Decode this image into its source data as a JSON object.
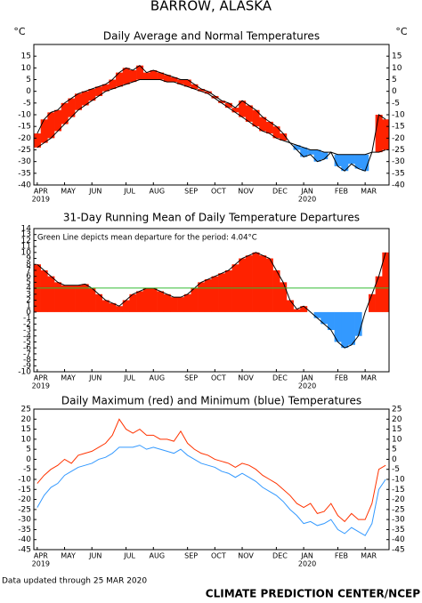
{
  "title": "BARROW, ALASKA",
  "footer_left": "Data updated through 25 MAR 2020",
  "footer_right": "CLIMATE PREDICTION CENTER/NCEP",
  "chart_data": [
    {
      "type": "band",
      "title": "Daily Average and Normal Temperatures",
      "unit_label": "°C",
      "categories": [
        "APR",
        null,
        null,
        null,
        "MAY",
        null,
        null,
        null,
        "JUN",
        null,
        null,
        null,
        null,
        "JUL",
        null,
        null,
        null,
        "AUG",
        null,
        null,
        null,
        null,
        "SEP",
        null,
        null,
        null,
        "OCT",
        null,
        null,
        null,
        "NOV",
        null,
        null,
        null,
        null,
        "DEC",
        null,
        null,
        null,
        "JAN",
        null,
        null,
        null,
        null,
        "FEB",
        null,
        null,
        null,
        "MAR",
        null,
        null,
        null
      ],
      "year_labels": [
        "2019",
        null,
        null,
        null,
        null,
        null,
        null,
        null,
        null,
        null,
        null,
        null,
        null,
        null,
        null,
        null,
        null,
        null,
        null,
        null,
        null,
        null,
        null,
        null,
        null,
        null,
        null,
        null,
        null,
        null,
        null,
        null,
        null,
        null,
        null,
        null,
        null,
        null,
        null,
        "2020",
        null,
        null,
        null,
        null,
        null,
        null,
        null,
        null,
        null,
        null,
        null,
        null
      ],
      "above_color": "#ff2200",
      "below_color": "#3399ff",
      "series": [
        {
          "color": "#000000",
          "values": [
            -18,
            -12,
            -9,
            -8,
            -5,
            -3,
            -1,
            0,
            1,
            2,
            3,
            5,
            8,
            10,
            9,
            11,
            8,
            9,
            8,
            7,
            6,
            5,
            5,
            3,
            1,
            0,
            -2,
            -4,
            -5,
            -7,
            -4,
            -6,
            -8,
            -11,
            -13,
            -15,
            -18,
            -22,
            -25,
            -28,
            -27,
            -30,
            -29,
            -26,
            -32,
            -34,
            -31,
            -33,
            -34,
            -26,
            -10,
            -12
          ]
        },
        {
          "color": "#000000",
          "values": [
            -24,
            -22,
            -20,
            -17,
            -14,
            -11,
            -8,
            -6,
            -4,
            -2,
            0,
            1,
            2,
            3,
            4,
            5,
            5,
            5,
            5,
            4,
            4,
            3,
            2,
            1,
            0,
            -1,
            -3,
            -5,
            -7,
            -9,
            -11,
            -13,
            -15,
            -17,
            -18,
            -20,
            -21,
            -22,
            -23,
            -24,
            -25,
            -25,
            -26,
            -26,
            -27,
            -27,
            -27,
            -27,
            -27,
            -26,
            -26,
            -25
          ]
        }
      ],
      "ylim": [
        -40,
        20
      ],
      "yticks": [
        -40,
        -35,
        -30,
        -25,
        -20,
        -15,
        -10,
        -5,
        0,
        5,
        10,
        15
      ],
      "yaxis_sides": [
        "left",
        "right"
      ]
    },
    {
      "type": "area",
      "title": "31-Day Running Mean of Daily Temperature Departures",
      "annotation": "Green Line depicts mean departure for the period: 4.04°C",
      "mean": 4.04,
      "mean_color": "#33bb33",
      "categories": [
        "APR",
        null,
        null,
        null,
        "MAY",
        null,
        null,
        null,
        "JUN",
        null,
        null,
        null,
        null,
        "JUL",
        null,
        null,
        null,
        "AUG",
        null,
        null,
        null,
        null,
        "SEP",
        null,
        null,
        null,
        "OCT",
        null,
        null,
        null,
        "NOV",
        null,
        null,
        null,
        null,
        "DEC",
        null,
        null,
        null,
        "JAN",
        null,
        null,
        null,
        null,
        "FEB",
        null,
        null,
        null,
        "MAR",
        null,
        null,
        null
      ],
      "year_labels": [
        "2019",
        null,
        null,
        null,
        null,
        null,
        null,
        null,
        null,
        null,
        null,
        null,
        null,
        null,
        null,
        null,
        null,
        null,
        null,
        null,
        null,
        null,
        null,
        null,
        null,
        null,
        null,
        null,
        null,
        null,
        null,
        null,
        null,
        null,
        null,
        null,
        null,
        null,
        null,
        "2020",
        null,
        null,
        null,
        null,
        null,
        null,
        null,
        null,
        null,
        null,
        null,
        null
      ],
      "above_color": "#ff2200",
      "below_color": "#3399ff",
      "series": [
        {
          "color": "#000000",
          "values": [
            8,
            7,
            6,
            5,
            4.5,
            4.5,
            4.5,
            4.7,
            4,
            3,
            2,
            1.5,
            1,
            2,
            3,
            3.5,
            4,
            4,
            3.5,
            3,
            2.5,
            2.5,
            3,
            4,
            5,
            5.5,
            6,
            6.5,
            7,
            8,
            9,
            9.5,
            10,
            9.5,
            9,
            7,
            5,
            2,
            0.5,
            1,
            0,
            -1,
            -2,
            -3,
            -5,
            -6,
            -5.5,
            -4,
            0,
            3,
            6,
            10
          ]
        }
      ],
      "ylim": [
        -10,
        14
      ],
      "yticks": [
        -10,
        -9,
        -8,
        -7,
        -6,
        -5,
        -4,
        -3,
        -2,
        -1,
        0,
        1,
        2,
        3,
        4,
        5,
        6,
        7,
        8,
        9,
        10,
        11,
        12,
        13,
        14
      ],
      "yaxis_sides": [
        "left"
      ]
    },
    {
      "type": "line",
      "title": "Daily Maximum (red) and Minimum (blue) Temperatures",
      "categories": [
        "APR",
        null,
        null,
        null,
        "MAY",
        null,
        null,
        null,
        "JUN",
        null,
        null,
        null,
        null,
        "JUL",
        null,
        null,
        null,
        "AUG",
        null,
        null,
        null,
        null,
        "SEP",
        null,
        null,
        null,
        "OCT",
        null,
        null,
        null,
        "NOV",
        null,
        null,
        null,
        null,
        "DEC",
        null,
        null,
        null,
        "JAN",
        null,
        null,
        null,
        null,
        "FEB",
        null,
        null,
        null,
        "MAR",
        null,
        null,
        null
      ],
      "year_labels": [
        "2019",
        null,
        null,
        null,
        null,
        null,
        null,
        null,
        null,
        null,
        null,
        null,
        null,
        null,
        null,
        null,
        null,
        null,
        null,
        null,
        null,
        null,
        null,
        null,
        null,
        null,
        null,
        null,
        null,
        null,
        null,
        null,
        null,
        null,
        null,
        null,
        null,
        null,
        null,
        "2020",
        null,
        null,
        null,
        null,
        null,
        null,
        null,
        null,
        null,
        null,
        null,
        null
      ],
      "series": [
        {
          "color": "#ff3300",
          "values": [
            -12,
            -8,
            -5,
            -3,
            0,
            -2,
            2,
            3,
            4,
            6,
            8,
            12,
            20,
            15,
            13,
            15,
            12,
            12,
            10,
            10,
            9,
            14,
            8,
            5,
            3,
            2,
            0,
            -1,
            -2,
            -4,
            -2,
            -3,
            -5,
            -8,
            -10,
            -12,
            -15,
            -18,
            -22,
            -24,
            -22,
            -27,
            -26,
            -22,
            -28,
            -31,
            -27,
            -30,
            -30,
            -22,
            -5,
            -3
          ]
        },
        {
          "color": "#3399ff",
          "values": [
            -24,
            -18,
            -14,
            -12,
            -8,
            -6,
            -4,
            -3,
            -2,
            0,
            1,
            3,
            6,
            6,
            6,
            7,
            5,
            6,
            5,
            4,
            3,
            5,
            2,
            0,
            -2,
            -3,
            -4,
            -6,
            -7,
            -9,
            -7,
            -9,
            -11,
            -14,
            -16,
            -18,
            -21,
            -25,
            -28,
            -32,
            -31,
            -33,
            -32,
            -30,
            -35,
            -37,
            -34,
            -36,
            -38,
            -32,
            -15,
            -10
          ]
        }
      ],
      "ylim": [
        -45,
        25
      ],
      "yticks": [
        -45,
        -40,
        -35,
        -30,
        -25,
        -20,
        -15,
        -10,
        -5,
        0,
        5,
        10,
        15,
        20,
        25
      ],
      "yaxis_sides": [
        "left",
        "right"
      ]
    }
  ]
}
